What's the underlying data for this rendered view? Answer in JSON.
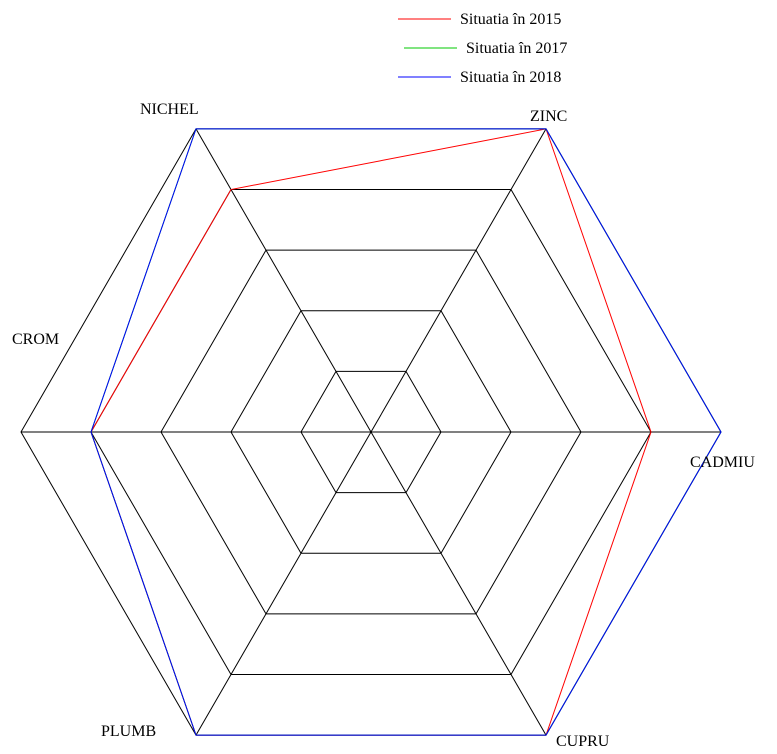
{
  "chart_data": {
    "type": "radar",
    "title": "",
    "axes": [
      "ZINC",
      "CADMIU",
      "CUPRU",
      "PLUMB",
      "CROM",
      "NICHEL"
    ],
    "rings": 5,
    "range": [
      0,
      5
    ],
    "grid": true,
    "legend_position": "top-right",
    "series": [
      {
        "name": "Situatia în 2015",
        "color": "#ff0000",
        "values": [
          5,
          4,
          5,
          5,
          4,
          4
        ]
      },
      {
        "name": "Situatia în 2017",
        "color": "#00c800",
        "values": [
          5,
          5,
          5,
          5,
          4,
          5
        ]
      },
      {
        "name": "Situatia în 2018",
        "color": "#0000ff",
        "values": [
          5,
          5,
          5,
          5,
          4,
          5
        ]
      }
    ]
  }
}
